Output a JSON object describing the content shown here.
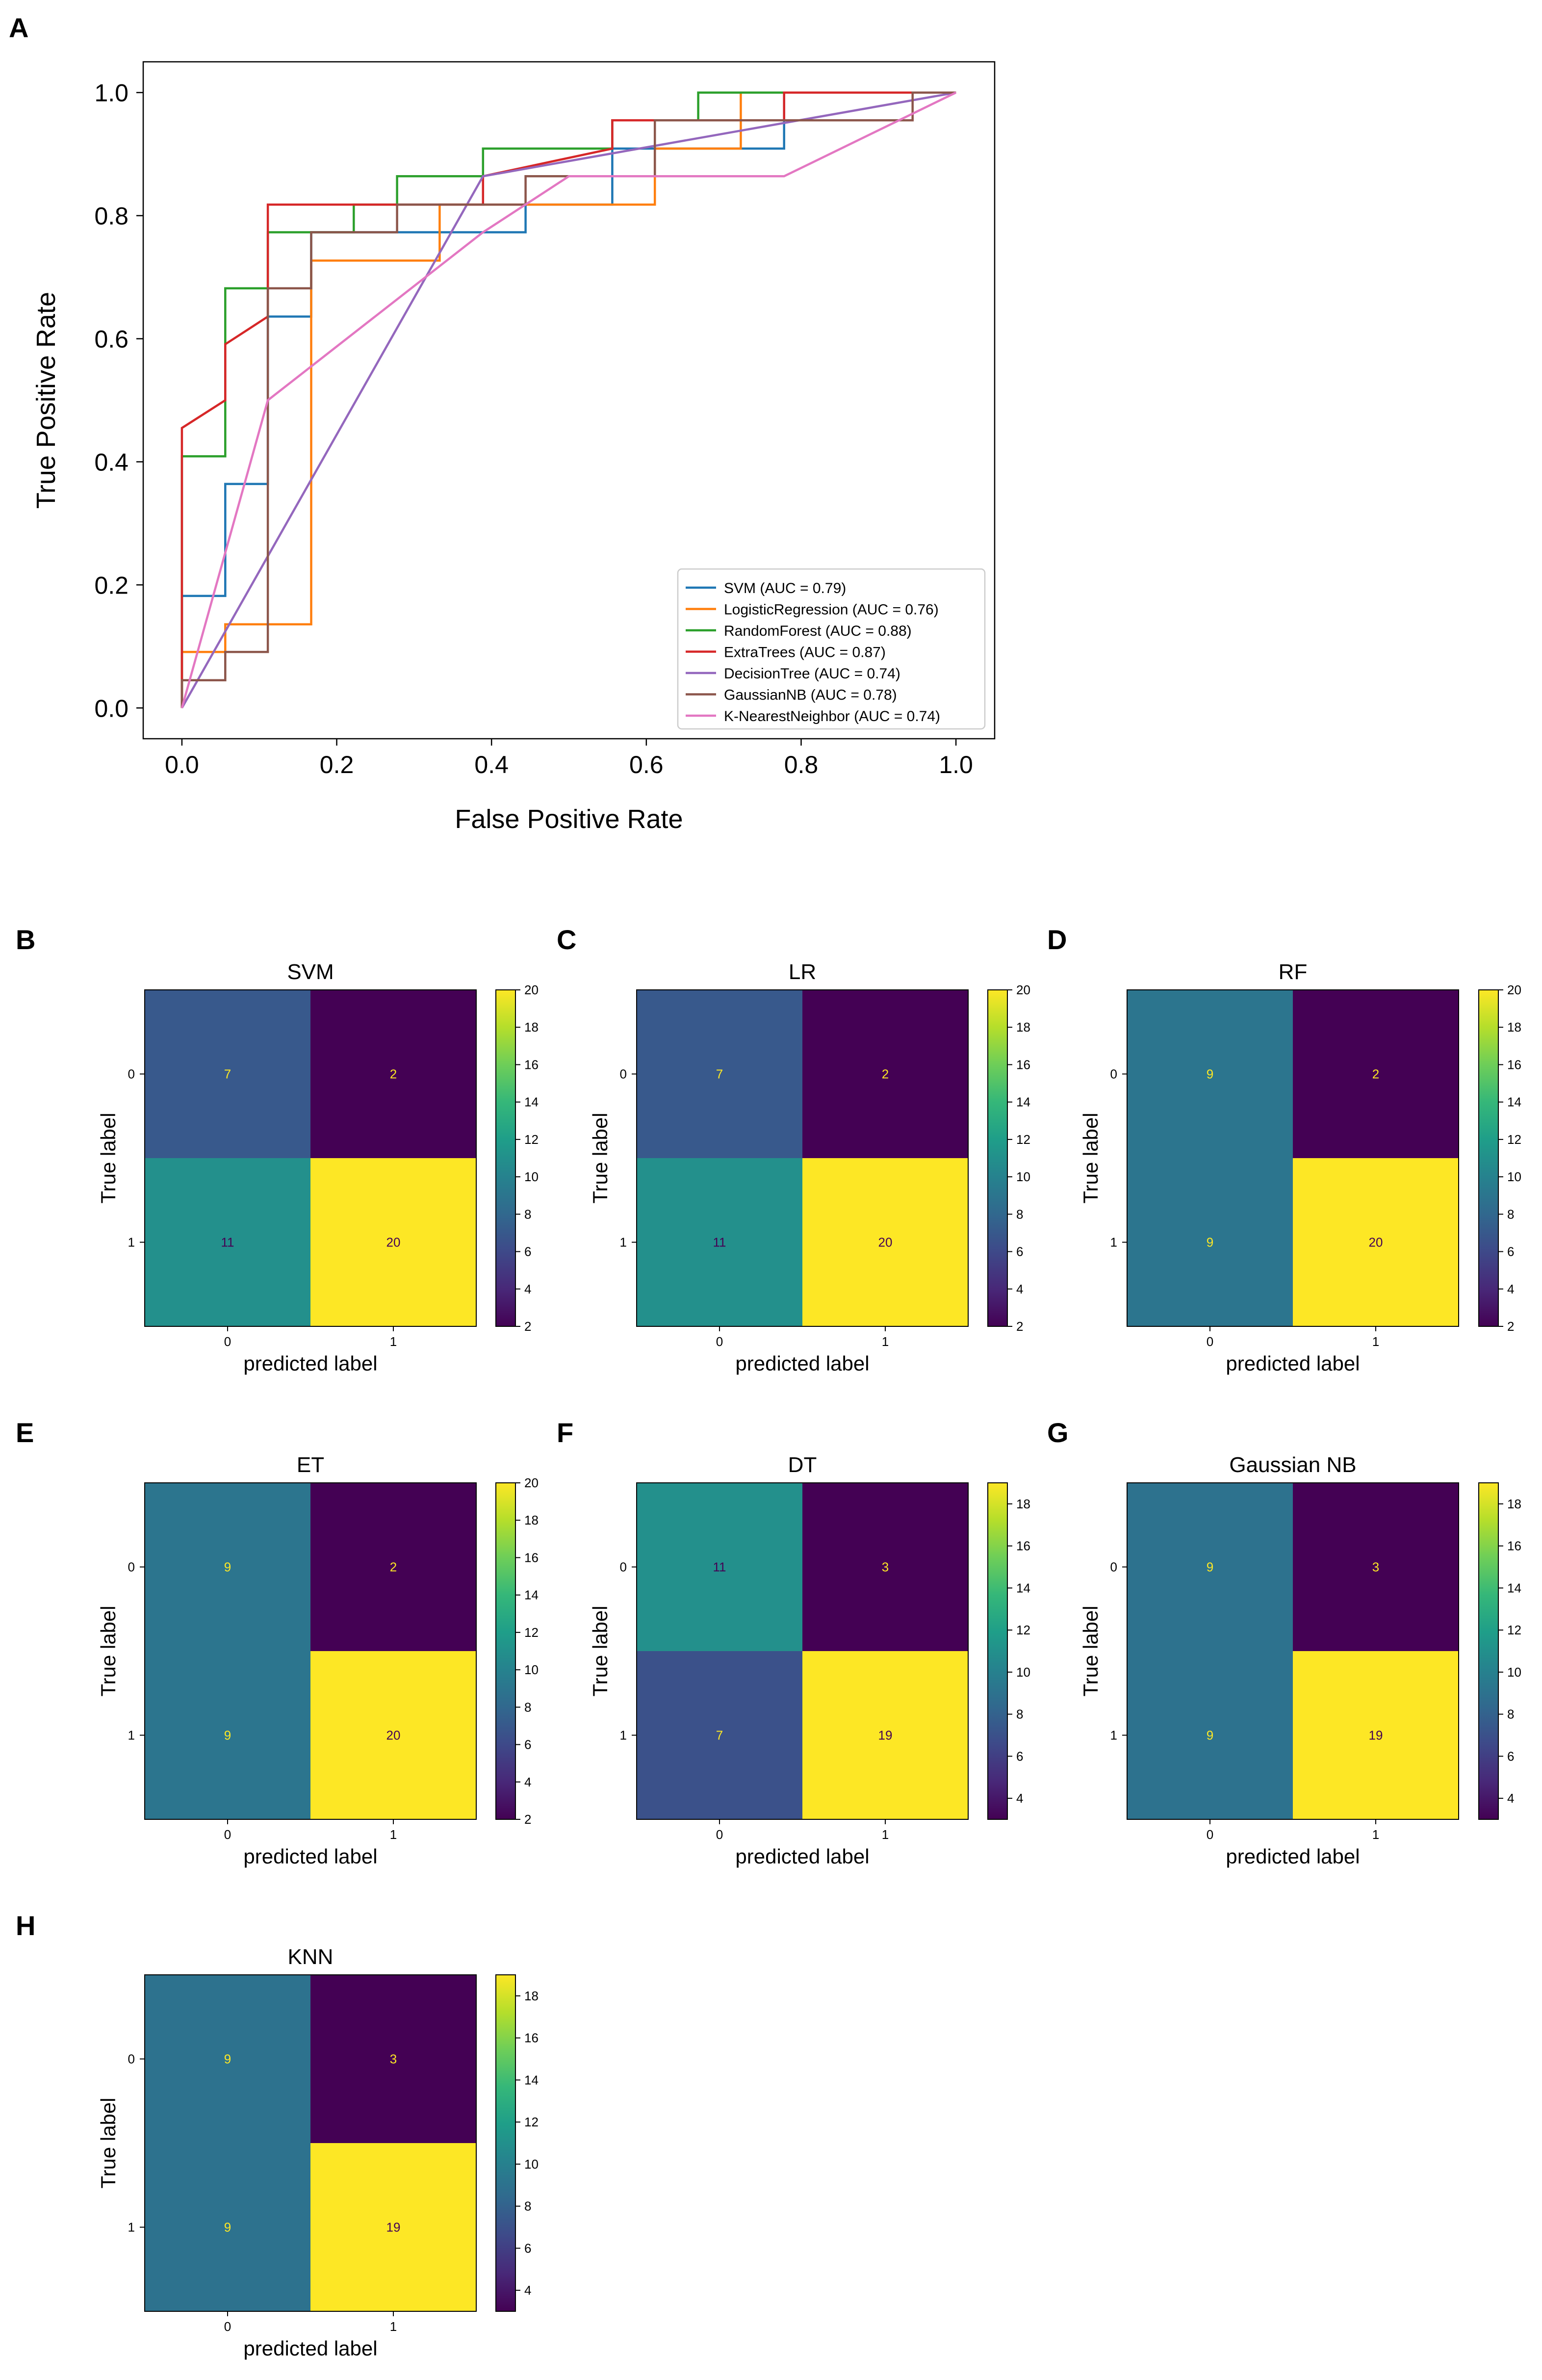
{
  "chart_data": [
    {
      "panel": "A",
      "type": "line",
      "title": "",
      "xlabel": "False Positive Rate",
      "ylabel": "True Positive Rate",
      "xlim": [
        -0.05,
        1.05
      ],
      "ylim": [
        -0.05,
        1.05
      ],
      "xticks": [
        "0.0",
        "0.2",
        "0.4",
        "0.6",
        "0.8",
        "1.0"
      ],
      "yticks": [
        "0.0",
        "0.2",
        "0.4",
        "0.6",
        "0.8",
        "1.0"
      ],
      "legend_position": "lower-right",
      "series": [
        {
          "name": "SVM (AUC = 0.79)",
          "color": "#1f77b4",
          "step": true,
          "x": [
            0,
            0,
            0.056,
            0.056,
            0.111,
            0.111,
            0.167,
            0.167,
            0.333,
            0.333,
            0.444,
            0.444,
            0.556,
            0.556,
            0.778,
            0.778,
            1.0
          ],
          "y": [
            0,
            0.182,
            0.182,
            0.364,
            0.364,
            0.636,
            0.636,
            0.773,
            0.773,
            0.773,
            0.773,
            0.818,
            0.818,
            0.909,
            0.909,
            1.0,
            1.0
          ]
        },
        {
          "name": "LogisticRegression (AUC = 0.76)",
          "color": "#ff7f0e",
          "step": true,
          "x": [
            0,
            0,
            0.056,
            0.056,
            0.167,
            0.167,
            0.333,
            0.333,
            0.611,
            0.611,
            0.722,
            0.722,
            1.0
          ],
          "y": [
            0,
            0.091,
            0.091,
            0.136,
            0.136,
            0.727,
            0.727,
            0.818,
            0.818,
            0.909,
            0.909,
            1.0,
            1.0
          ]
        },
        {
          "name": "RandomForest (AUC = 0.88)",
          "color": "#2ca02c",
          "step": true,
          "x": [
            0,
            0,
            0.056,
            0.056,
            0.111,
            0.111,
            0.222,
            0.222,
            0.278,
            0.278,
            0.389,
            0.389,
            0.556,
            0.556,
            0.667,
            0.667,
            1.0
          ],
          "y": [
            0,
            0.409,
            0.409,
            0.682,
            0.682,
            0.773,
            0.773,
            0.818,
            0.818,
            0.864,
            0.864,
            0.909,
            0.909,
            0.955,
            0.955,
            1.0,
            1.0
          ]
        },
        {
          "name": "ExtraTrees (AUC = 0.87)",
          "color": "#d62728",
          "step": true,
          "x": [
            0,
            0,
            0.056,
            0.056,
            0.111,
            0.111,
            0.389,
            0.389,
            0.556,
            0.556,
            0.778,
            0.778,
            1.0
          ],
          "y": [
            0,
            0.455,
            0.5,
            0.591,
            0.636,
            0.818,
            0.818,
            0.864,
            0.909,
            0.955,
            0.955,
            1.0,
            1.0
          ]
        },
        {
          "name": "DecisionTree (AUC = 0.74)",
          "color": "#9467bd",
          "step": false,
          "x": [
            0,
            0.389,
            1.0
          ],
          "y": [
            0,
            0.864,
            1.0
          ]
        },
        {
          "name": "GaussianNB (AUC = 0.78)",
          "color": "#8c564b",
          "step": true,
          "x": [
            0,
            0,
            0.056,
            0.056,
            0.111,
            0.111,
            0.167,
            0.167,
            0.278,
            0.278,
            0.444,
            0.444,
            0.611,
            0.611,
            0.944,
            0.944,
            1.0
          ],
          "y": [
            0,
            0.045,
            0.045,
            0.091,
            0.091,
            0.682,
            0.682,
            0.773,
            0.773,
            0.818,
            0.818,
            0.864,
            0.864,
            0.955,
            0.955,
            1.0,
            1.0
          ]
        },
        {
          "name": "K-NearestNeighbor (AUC = 0.74)",
          "color": "#e377c2",
          "step": false,
          "x": [
            0,
            0.111,
            0.389,
            0.5,
            0.778,
            1.0
          ],
          "y": [
            0,
            0.5,
            0.773,
            0.864,
            0.864,
            1.0
          ]
        }
      ]
    },
    {
      "panel": "B",
      "type": "heatmap",
      "title": "SVM",
      "xlabel": "predicted label",
      "ylabel": "True label",
      "categories": [
        "0",
        "1"
      ],
      "values": [
        [
          7,
          2
        ],
        [
          11,
          20
        ]
      ],
      "vmin": 2,
      "vmax": 20,
      "colorbar_ticks": [
        2,
        4,
        6,
        8,
        10,
        12,
        14,
        16,
        18,
        20
      ]
    },
    {
      "panel": "C",
      "type": "heatmap",
      "title": "LR",
      "xlabel": "predicted label",
      "ylabel": "True label",
      "categories": [
        "0",
        "1"
      ],
      "values": [
        [
          7,
          2
        ],
        [
          11,
          20
        ]
      ],
      "vmin": 2,
      "vmax": 20,
      "colorbar_ticks": [
        2,
        4,
        6,
        8,
        10,
        12,
        14,
        16,
        18,
        20
      ]
    },
    {
      "panel": "D",
      "type": "heatmap",
      "title": "RF",
      "xlabel": "predicted label",
      "ylabel": "True label",
      "categories": [
        "0",
        "1"
      ],
      "values": [
        [
          9,
          2
        ],
        [
          9,
          20
        ]
      ],
      "vmin": 2,
      "vmax": 20,
      "colorbar_ticks": [
        2,
        4,
        6,
        8,
        10,
        12,
        14,
        16,
        18,
        20
      ]
    },
    {
      "panel": "E",
      "type": "heatmap",
      "title": "ET",
      "xlabel": "predicted label",
      "ylabel": "True label",
      "categories": [
        "0",
        "1"
      ],
      "values": [
        [
          9,
          2
        ],
        [
          9,
          20
        ]
      ],
      "vmin": 2,
      "vmax": 20,
      "colorbar_ticks": [
        2,
        4,
        6,
        8,
        10,
        12,
        14,
        16,
        18,
        20
      ]
    },
    {
      "panel": "F",
      "type": "heatmap",
      "title": "DT",
      "xlabel": "predicted label",
      "ylabel": "True label",
      "categories": [
        "0",
        "1"
      ],
      "values": [
        [
          11,
          3
        ],
        [
          7,
          19
        ]
      ],
      "vmin": 3,
      "vmax": 19,
      "colorbar_ticks": [
        4,
        6,
        8,
        10,
        12,
        14,
        16,
        18
      ]
    },
    {
      "panel": "G",
      "type": "heatmap",
      "title": "Gaussian NB",
      "xlabel": "predicted label",
      "ylabel": "True label",
      "categories": [
        "0",
        "1"
      ],
      "values": [
        [
          9,
          3
        ],
        [
          9,
          19
        ]
      ],
      "vmin": 3,
      "vmax": 19,
      "colorbar_ticks": [
        4,
        6,
        8,
        10,
        12,
        14,
        16,
        18
      ]
    },
    {
      "panel": "H",
      "type": "heatmap",
      "title": "KNN",
      "xlabel": "predicted label",
      "ylabel": "True label",
      "categories": [
        "0",
        "1"
      ],
      "values": [
        [
          9,
          3
        ],
        [
          9,
          19
        ]
      ],
      "vmin": 3,
      "vmax": 19,
      "colorbar_ticks": [
        4,
        6,
        8,
        10,
        12,
        14,
        16,
        18
      ]
    }
  ]
}
